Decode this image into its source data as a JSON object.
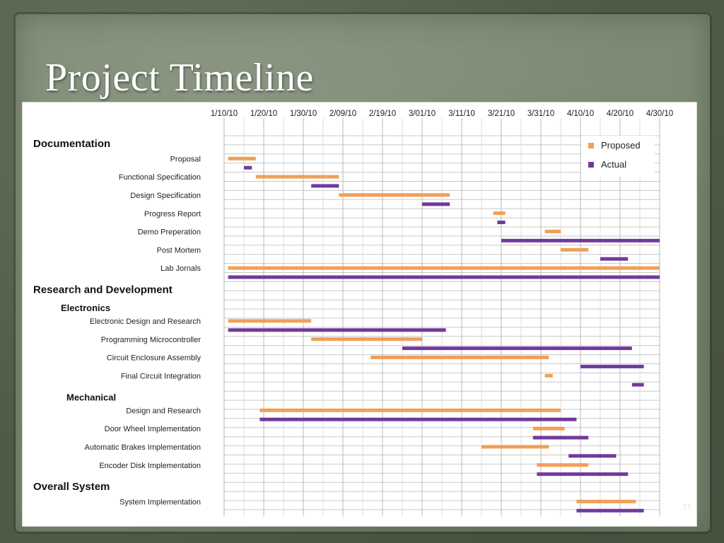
{
  "slide": {
    "title": "Project Timeline",
    "page_number": "17"
  },
  "colors": {
    "proposed": "#f0a057",
    "actual": "#703a9b",
    "grid": "#c8c8c8",
    "background": "#4f5a46"
  },
  "chart_data": {
    "type": "gantt",
    "x_axis": {
      "type": "date",
      "range": [
        "1/10/10",
        "4/30/10"
      ],
      "tick_labels": [
        "1/10/10",
        "1/20/10",
        "1/30/10",
        "2/09/10",
        "2/19/10",
        "3/01/10",
        "3/11/10",
        "3/21/10",
        "3/31/10",
        "4/10/10",
        "4/20/10",
        "4/30/10"
      ],
      "ticks": [
        "2010-01-10",
        "2010-01-20",
        "2010-01-30",
        "2010-02-09",
        "2010-02-19",
        "2010-03-01",
        "2010-03-11",
        "2010-03-21",
        "2010-03-31",
        "2010-04-10",
        "2010-04-20",
        "2010-04-30"
      ],
      "position": "top"
    },
    "grid": true,
    "legend": {
      "placement": "top-right",
      "entries": [
        {
          "name": "Proposed",
          "color": "#f0a057"
        },
        {
          "name": "Actual",
          "color": "#703a9b"
        }
      ]
    },
    "series": [
      {
        "name": "Proposed",
        "color": "#f0a057"
      },
      {
        "name": "Actual",
        "color": "#703a9b"
      }
    ],
    "rows": [
      {
        "kind": "section",
        "label": "Documentation"
      },
      {
        "kind": "task",
        "label": "Proposal",
        "proposed": [
          "2010-01-11",
          "2010-01-18"
        ],
        "actual": [
          "2010-01-15",
          "2010-01-17"
        ]
      },
      {
        "kind": "task",
        "label": "Functional Specification",
        "proposed": [
          "2010-01-18",
          "2010-02-08"
        ],
        "actual": [
          "2010-02-01",
          "2010-02-08"
        ]
      },
      {
        "kind": "task",
        "label": "Design Specification",
        "proposed": [
          "2010-02-08",
          "2010-03-08"
        ],
        "actual": [
          "2010-03-01",
          "2010-03-08"
        ]
      },
      {
        "kind": "task",
        "label": "Progress Report",
        "proposed": [
          "2010-03-19",
          "2010-03-22"
        ],
        "actual": [
          "2010-03-20",
          "2010-03-22"
        ]
      },
      {
        "kind": "task",
        "label": "Demo Preperation",
        "proposed": [
          "2010-04-01",
          "2010-04-05"
        ],
        "actual": [
          "2010-03-21",
          "2010-04-30"
        ]
      },
      {
        "kind": "task",
        "label": "Post Mortem",
        "proposed": [
          "2010-04-05",
          "2010-04-12"
        ],
        "actual": [
          "2010-04-15",
          "2010-04-22"
        ]
      },
      {
        "kind": "task",
        "label": "Lab Jornals",
        "proposed": [
          "2010-01-11",
          "2010-04-30"
        ],
        "actual": [
          "2010-01-11",
          "2010-04-30"
        ]
      },
      {
        "kind": "section",
        "label": "Research and Development"
      },
      {
        "kind": "subsection",
        "label": "Electronics"
      },
      {
        "kind": "task",
        "label": "Electronic Design and Research",
        "proposed": [
          "2010-01-11",
          "2010-02-01"
        ],
        "actual": [
          "2010-01-11",
          "2010-03-07"
        ]
      },
      {
        "kind": "task",
        "label": "Programming Microcontroller",
        "proposed": [
          "2010-02-01",
          "2010-03-01"
        ],
        "actual": [
          "2010-02-24",
          "2010-04-23"
        ]
      },
      {
        "kind": "task",
        "label": "Circuit Enclosure Assembly",
        "proposed": [
          "2010-02-16",
          "2010-04-02"
        ],
        "actual": [
          "2010-04-10",
          "2010-04-26"
        ]
      },
      {
        "kind": "task",
        "label": "Final Circuit Integration",
        "proposed": [
          "2010-04-01",
          "2010-04-03"
        ],
        "actual": [
          "2010-04-23",
          "2010-04-26"
        ]
      },
      {
        "kind": "subsection",
        "label": "Mechanical"
      },
      {
        "kind": "task",
        "label": "Design and Research",
        "proposed": [
          "2010-01-19",
          "2010-04-05"
        ],
        "actual": [
          "2010-01-19",
          "2010-04-09"
        ]
      },
      {
        "kind": "task",
        "label": "Door Wheel Implementation",
        "proposed": [
          "2010-03-29",
          "2010-04-06"
        ],
        "actual": [
          "2010-03-29",
          "2010-04-12"
        ]
      },
      {
        "kind": "task",
        "label": "Automatic Brakes Implementation",
        "proposed": [
          "2010-03-16",
          "2010-04-02"
        ],
        "actual": [
          "2010-04-07",
          "2010-04-19"
        ]
      },
      {
        "kind": "task",
        "label": "Encoder Disk Implementation",
        "proposed": [
          "2010-03-30",
          "2010-04-12"
        ],
        "actual": [
          "2010-03-30",
          "2010-04-22"
        ]
      },
      {
        "kind": "section",
        "label": "Overall System"
      },
      {
        "kind": "task",
        "label": "System Implementation",
        "proposed": [
          "2010-04-09",
          "2010-04-24"
        ],
        "actual": [
          "2010-04-09",
          "2010-04-26"
        ]
      }
    ]
  }
}
